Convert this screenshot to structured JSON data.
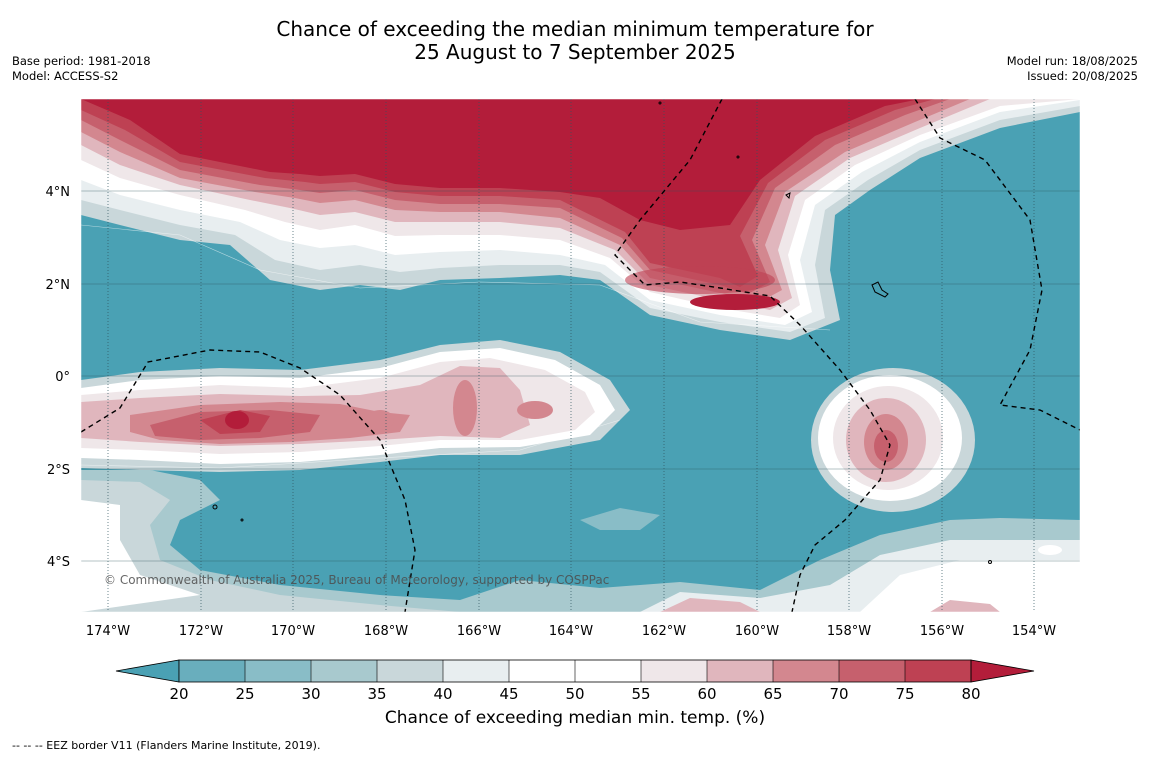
{
  "header": {
    "title_line1": "Chance of exceeding the median minimum temperature for",
    "title_line2": "25 August to 7 September 2025",
    "base_period": "Base period: 1981-2018",
    "model": "Model: ACCESS-S2",
    "model_run": "Model run: 18/08/2025",
    "issued": "Issued: 20/08/2025"
  },
  "map": {
    "lon_labels": [
      "174°W",
      "172°W",
      "170°W",
      "168°W",
      "166°W",
      "164°W",
      "162°W",
      "160°W",
      "158°W",
      "156°W",
      "154°W"
    ],
    "lat_labels": [
      "4°N",
      "2°N",
      "0°",
      "2°S",
      "4°S"
    ],
    "copyright": "© Commonwealth of Australia 2025, Bureau of Meteorology, supported by COSPPac",
    "colors": {
      "teal_dark": "#4aa1b4",
      "red_dark": "#b31d3a"
    }
  },
  "colorbar": {
    "title": "Chance of exceeding median min. temp. (%)",
    "ticks": [
      "20",
      "25",
      "30",
      "35",
      "40",
      "45",
      "50",
      "55",
      "60",
      "65",
      "70",
      "75",
      "80"
    ],
    "bin_colors": [
      "#69aebd",
      "#89bdc7",
      "#a8c9ce",
      "#c9d7da",
      "#e8eef0",
      "#ffffff",
      "#ffffff",
      "#efe7e9",
      "#e0b6bd",
      "#d3878f",
      "#c6606d",
      "#be4153"
    ],
    "low_arrow_color": "#4aa1b4",
    "high_arrow_color": "#b31d3a"
  },
  "footer": {
    "legend": "-- -- -- EEZ border V11 (Flanders Marine Institute, 2019)."
  }
}
